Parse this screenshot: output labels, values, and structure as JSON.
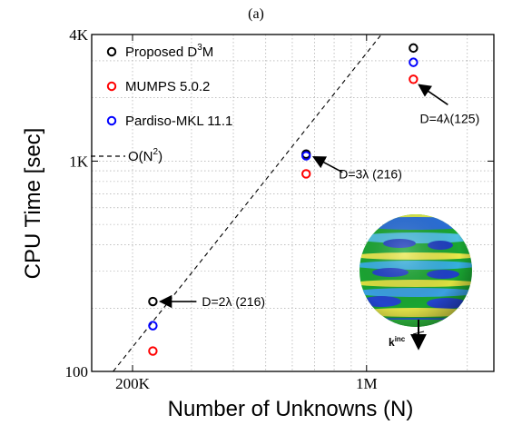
{
  "chart_data": {
    "type": "scatter",
    "subtitle": "(a)",
    "xlabel": "Number of Unknowns (N)",
    "ylabel": "CPU Time [sec]",
    "xscale": "log",
    "yscale": "log",
    "xlim": [
      151000,
      2400000
    ],
    "ylim": [
      100,
      4000
    ],
    "x_ticks": [
      {
        "value": 200000,
        "label": "200K"
      },
      {
        "value": 1000000,
        "label": "1M"
      }
    ],
    "y_ticks": [
      {
        "value": 100,
        "label": "100"
      },
      {
        "value": 1000,
        "label": "1K"
      },
      {
        "value": 4000,
        "label": "4K"
      }
    ],
    "grid": true,
    "legend_position": "top-left",
    "series": [
      {
        "name": "Proposed D",
        "name_sup": "3",
        "name_tail": "M",
        "color": "#000000",
        "points": [
          {
            "x": 230000,
            "y": 215
          },
          {
            "x": 660000,
            "y": 1080
          },
          {
            "x": 1380000,
            "y": 3450
          }
        ]
      },
      {
        "name": "MUMPS 5.0.2",
        "color": "#ff0000",
        "points": [
          {
            "x": 230000,
            "y": 125
          },
          {
            "x": 660000,
            "y": 870
          },
          {
            "x": 1380000,
            "y": 2450
          }
        ]
      },
      {
        "name": "Pardiso-MKL 11.1",
        "color": "#0000ff",
        "points": [
          {
            "x": 230000,
            "y": 165
          },
          {
            "x": 660000,
            "y": 1060
          },
          {
            "x": 1380000,
            "y": 2950
          }
        ]
      }
    ],
    "reference_line": {
      "label": "O(N",
      "label_sup": "2",
      "label_tail": ")",
      "points": [
        {
          "x": 175000,
          "y": 100
        },
        {
          "x": 1100000,
          "y": 3950
        }
      ]
    },
    "annotations": [
      {
        "text": "D=2λ (216)",
        "x": 230000,
        "y": 215
      },
      {
        "text": "D=3λ (216)",
        "x": 660000,
        "y": 1080
      },
      {
        "text": "D=4λ(125)",
        "x": 1380000,
        "y": 2450
      }
    ],
    "inset": {
      "label": "k",
      "label_sup": "inc"
    }
  }
}
